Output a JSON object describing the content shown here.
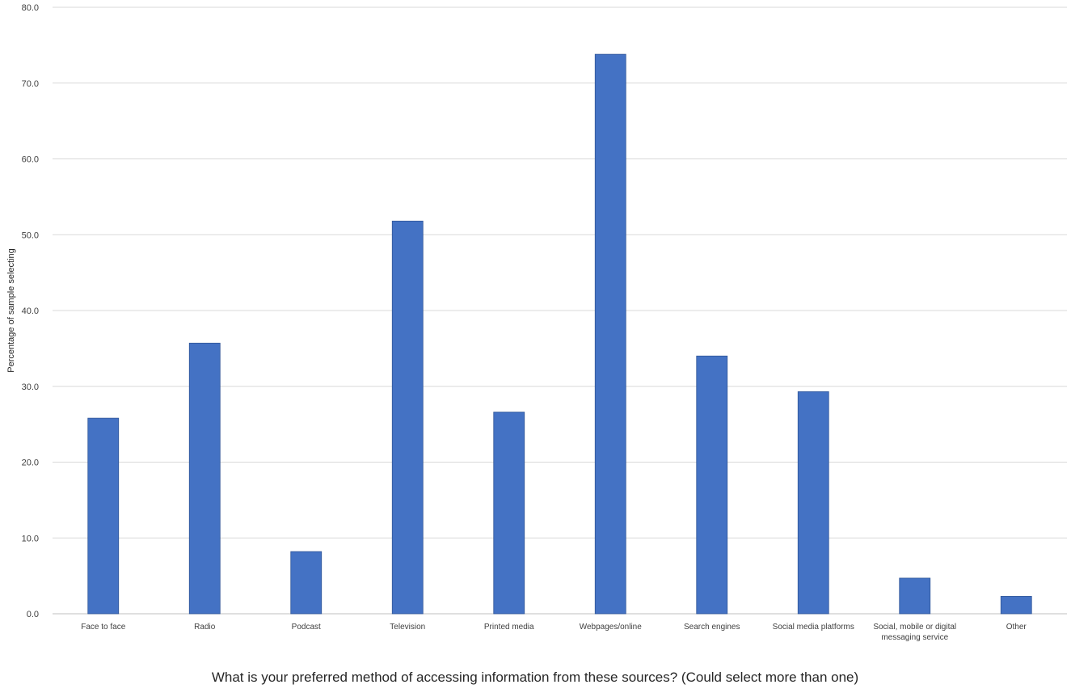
{
  "chart_data": {
    "type": "bar",
    "xlabel": "What is your preferred method of accessing information from these sources? (Could select more than one)",
    "ylabel": "Percentage of sample selecting",
    "ylim": [
      0,
      80
    ],
    "yticks": [
      "0.0",
      "10.0",
      "20.0",
      "30.0",
      "40.0",
      "50.0",
      "60.0",
      "70.0",
      "80.0"
    ],
    "grid": true,
    "legend": "none",
    "bar_color": "#4472C4",
    "categories": [
      [
        "Face to face"
      ],
      [
        "Radio"
      ],
      [
        "Podcast"
      ],
      [
        "Television"
      ],
      [
        "Printed media"
      ],
      [
        "Webpages/online"
      ],
      [
        "Search engines"
      ],
      [
        "Social media platforms"
      ],
      [
        "Social, mobile or digital",
        "messaging service"
      ],
      [
        "Other"
      ]
    ],
    "values": [
      25.8,
      35.7,
      8.2,
      51.8,
      26.6,
      73.8,
      34.0,
      29.3,
      4.7,
      2.3
    ]
  }
}
